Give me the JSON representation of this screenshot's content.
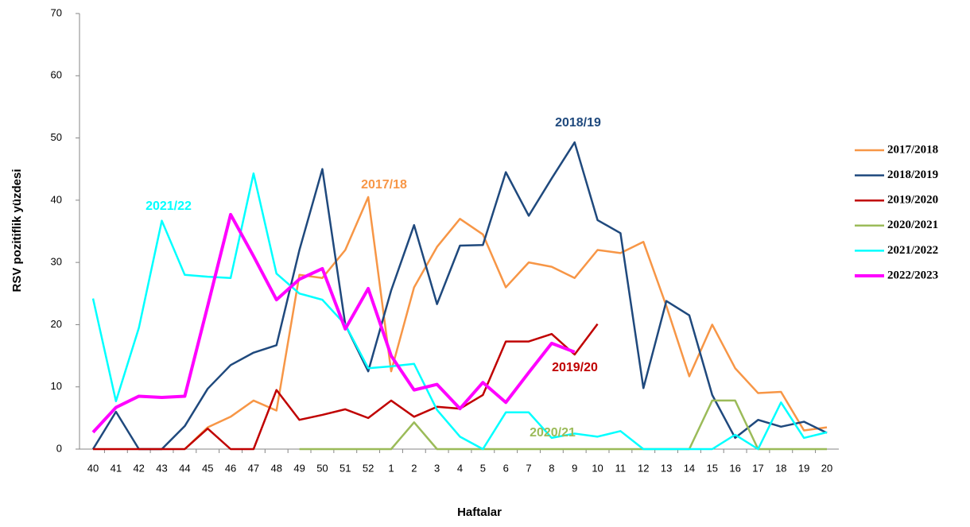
{
  "chart_data": {
    "type": "line",
    "y_label": "RSV pozitiflik yüzdesi",
    "x_label": "Haftalar",
    "categories": [
      "40",
      "41",
      "42",
      "43",
      "44",
      "45",
      "46",
      "47",
      "48",
      "49",
      "50",
      "51",
      "52",
      "1",
      "2",
      "3",
      "4",
      "5",
      "6",
      "7",
      "8",
      "9",
      "10",
      "11",
      "12",
      "13",
      "14",
      "15",
      "16",
      "17",
      "18",
      "19",
      "20"
    ],
    "ylim": [
      0,
      70
    ],
    "yticks": [
      0,
      10,
      20,
      30,
      40,
      50,
      60,
      70
    ],
    "legend": "right",
    "series": [
      {
        "name": "2017/2018",
        "color": "#f79646",
        "values": [
          null,
          null,
          null,
          null,
          0,
          3.5,
          5.2,
          7.8,
          6.2,
          28,
          27.5,
          32,
          40.5,
          12.5,
          26,
          32.5,
          37,
          34.5,
          26,
          30,
          29.3,
          27.5,
          32,
          31.5,
          33.3,
          23,
          11.7,
          20,
          13,
          9,
          9.2,
          3,
          3.5
        ]
      },
      {
        "name": "2018/2019",
        "color": "#1f497d",
        "values": [
          0,
          6,
          0,
          0,
          3.7,
          9.7,
          13.5,
          15.5,
          16.7,
          32,
          45,
          20,
          12.5,
          25.5,
          36,
          23.3,
          32.7,
          32.8,
          44.5,
          37.5,
          43.5,
          49.3,
          36.8,
          34.7,
          9.8,
          23.8,
          21.5,
          8.7,
          1.8,
          4.7,
          3.6,
          4.4,
          2.6
        ]
      },
      {
        "name": "2019/2020",
        "color": "#c00000",
        "values": [
          0,
          0,
          0,
          0,
          0,
          3.3,
          0,
          0,
          9.5,
          4.7,
          5.5,
          6.4,
          5,
          7.8,
          5.2,
          6.8,
          6.5,
          8.7,
          17.3,
          17.3,
          18.5,
          15.2,
          20.1,
          null,
          null,
          null,
          null,
          null,
          null,
          null,
          null,
          null,
          null
        ]
      },
      {
        "name": "2020/2021",
        "color": "#9bbb59",
        "values": [
          null,
          null,
          null,
          null,
          null,
          null,
          null,
          null,
          null,
          0,
          0,
          0,
          0,
          0,
          4.3,
          0,
          0,
          0,
          0,
          0,
          0,
          0,
          0,
          0,
          0,
          0,
          0,
          7.8,
          7.8,
          0,
          0,
          0,
          0
        ]
      },
      {
        "name": "2021/2022",
        "color": "#00ffff",
        "values": [
          24.2,
          7.7,
          19.5,
          36.7,
          28,
          27.7,
          27.5,
          44.3,
          28.2,
          25,
          24,
          20,
          13,
          13.3,
          13.7,
          6.3,
          2,
          0,
          5.9,
          5.9,
          1.8,
          2.5,
          2,
          2.9,
          0,
          0,
          0,
          0,
          2.3,
          0,
          7.5,
          1.8,
          2.7
        ]
      },
      {
        "name": "2022/2023",
        "color": "#ff00ff",
        "values": [
          2.7,
          6.7,
          8.5,
          8.3,
          8.5,
          23,
          37.7,
          31,
          24,
          27.3,
          29,
          19.3,
          25.8,
          15,
          9.5,
          10.4,
          6.5,
          10.7,
          7.5,
          12.3,
          17,
          15.6,
          null,
          null,
          null,
          null,
          null,
          null,
          null,
          null,
          null,
          null,
          null
        ]
      }
    ],
    "annotations": [
      {
        "text": "2021/22",
        "color": "#00ffff"
      },
      {
        "text": "2017/18",
        "color": "#f79646"
      },
      {
        "text": "2018/19",
        "color": "#1f497d"
      },
      {
        "text": "2019/20",
        "color": "#c00000"
      },
      {
        "text": "2020/21",
        "color": "#9bbb59"
      }
    ]
  }
}
